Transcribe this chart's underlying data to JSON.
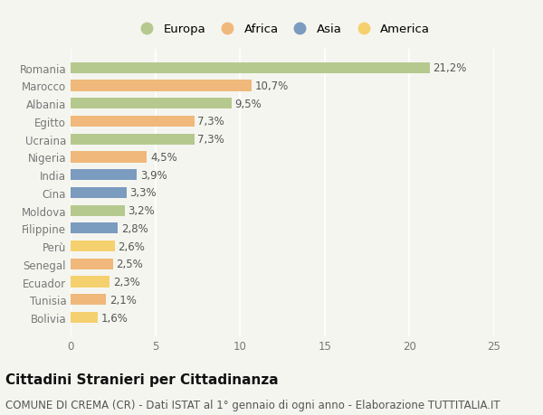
{
  "countries": [
    "Romania",
    "Marocco",
    "Albania",
    "Egitto",
    "Ucraina",
    "Nigeria",
    "India",
    "Cina",
    "Moldova",
    "Filippine",
    "Perù",
    "Senegal",
    "Ecuador",
    "Tunisia",
    "Bolivia"
  ],
  "values": [
    21.2,
    10.7,
    9.5,
    7.3,
    7.3,
    4.5,
    3.9,
    3.3,
    3.2,
    2.8,
    2.6,
    2.5,
    2.3,
    2.1,
    1.6
  ],
  "labels": [
    "21,2%",
    "10,7%",
    "9,5%",
    "7,3%",
    "7,3%",
    "4,5%",
    "3,9%",
    "3,3%",
    "3,2%",
    "2,8%",
    "2,6%",
    "2,5%",
    "2,3%",
    "2,1%",
    "1,6%"
  ],
  "regions": [
    "Europa",
    "Africa",
    "Europa",
    "Africa",
    "Europa",
    "Africa",
    "Asia",
    "Asia",
    "Europa",
    "Asia",
    "America",
    "Africa",
    "America",
    "Africa",
    "America"
  ],
  "colors": {
    "Europa": "#b5c98e",
    "Africa": "#f0b87a",
    "Asia": "#7b9bbf",
    "America": "#f5d06e"
  },
  "legend_order": [
    "Europa",
    "Africa",
    "Asia",
    "America"
  ],
  "xlim": [
    0,
    25
  ],
  "xticks": [
    0,
    5,
    10,
    15,
    20,
    25
  ],
  "title": "Cittadini Stranieri per Cittadinanza",
  "subtitle": "COMUNE DI CREMA (CR) - Dati ISTAT al 1° gennaio di ogni anno - Elaborazione TUTTITALIA.IT",
  "bg_color": "#f5f5f0",
  "bar_height": 0.62,
  "title_fontsize": 11,
  "subtitle_fontsize": 8.5,
  "label_fontsize": 8.5,
  "tick_fontsize": 8.5,
  "legend_fontsize": 9.5
}
